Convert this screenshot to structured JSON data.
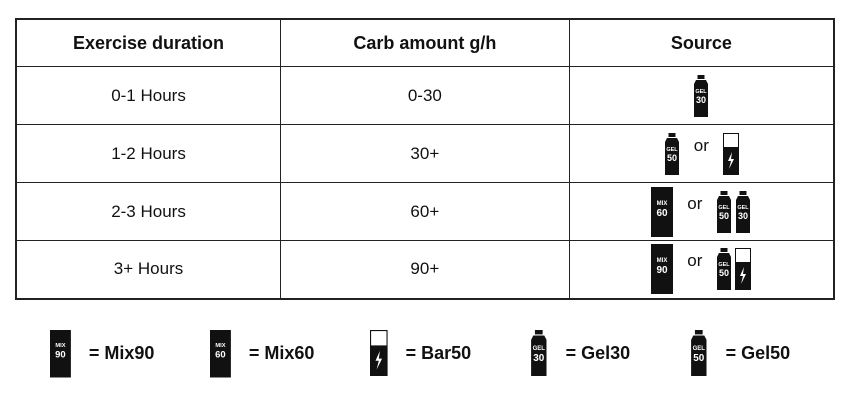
{
  "table": {
    "headers": [
      "Exercise duration",
      "Carb amount g/h",
      "Source"
    ],
    "rows": [
      {
        "duration": "0-1 Hours",
        "carbs": "0-30",
        "source": {
          "options": [
            [
              {
                "shape": "gel",
                "text": [
                  "GEL",
                  "30"
                ]
              }
            ]
          ]
        }
      },
      {
        "duration": "1-2 Hours",
        "carbs": "30+",
        "source": {
          "separator": "or",
          "options": [
            [
              {
                "shape": "gel",
                "text": [
                  "GEL",
                  "50"
                ]
              }
            ],
            [
              {
                "shape": "bar"
              }
            ]
          ]
        }
      },
      {
        "duration": "2-3 Hours",
        "carbs": "60+",
        "source": {
          "separator": "or",
          "options": [
            [
              {
                "shape": "mix",
                "text": [
                  "MIX",
                  "60"
                ]
              }
            ],
            [
              {
                "shape": "gel",
                "text": [
                  "GEL",
                  "50"
                ]
              },
              {
                "shape": "gel",
                "text": [
                  "GEL",
                  "30"
                ]
              }
            ]
          ]
        }
      },
      {
        "duration": "3+ Hours",
        "carbs": "90+",
        "source": {
          "separator": "or",
          "options": [
            [
              {
                "shape": "mix",
                "text": [
                  "MIX",
                  "90"
                ]
              }
            ],
            [
              {
                "shape": "gel",
                "text": [
                  "GEL",
                  "50"
                ]
              },
              {
                "shape": "bar"
              }
            ]
          ]
        }
      }
    ]
  },
  "legend": [
    {
      "icon": {
        "shape": "mix",
        "text": [
          "MIX",
          "90"
        ]
      },
      "label": "= Mix90"
    },
    {
      "icon": {
        "shape": "mix",
        "text": [
          "MIX",
          "60"
        ]
      },
      "label": "= Mix60"
    },
    {
      "icon": {
        "shape": "bar"
      },
      "label": "= Bar50"
    },
    {
      "icon": {
        "shape": "gel",
        "text": [
          "GEL",
          "30"
        ]
      },
      "label": "= Gel30"
    },
    {
      "icon": {
        "shape": "gel",
        "text": [
          "GEL",
          "50"
        ]
      },
      "label": "= Gel50"
    }
  ]
}
